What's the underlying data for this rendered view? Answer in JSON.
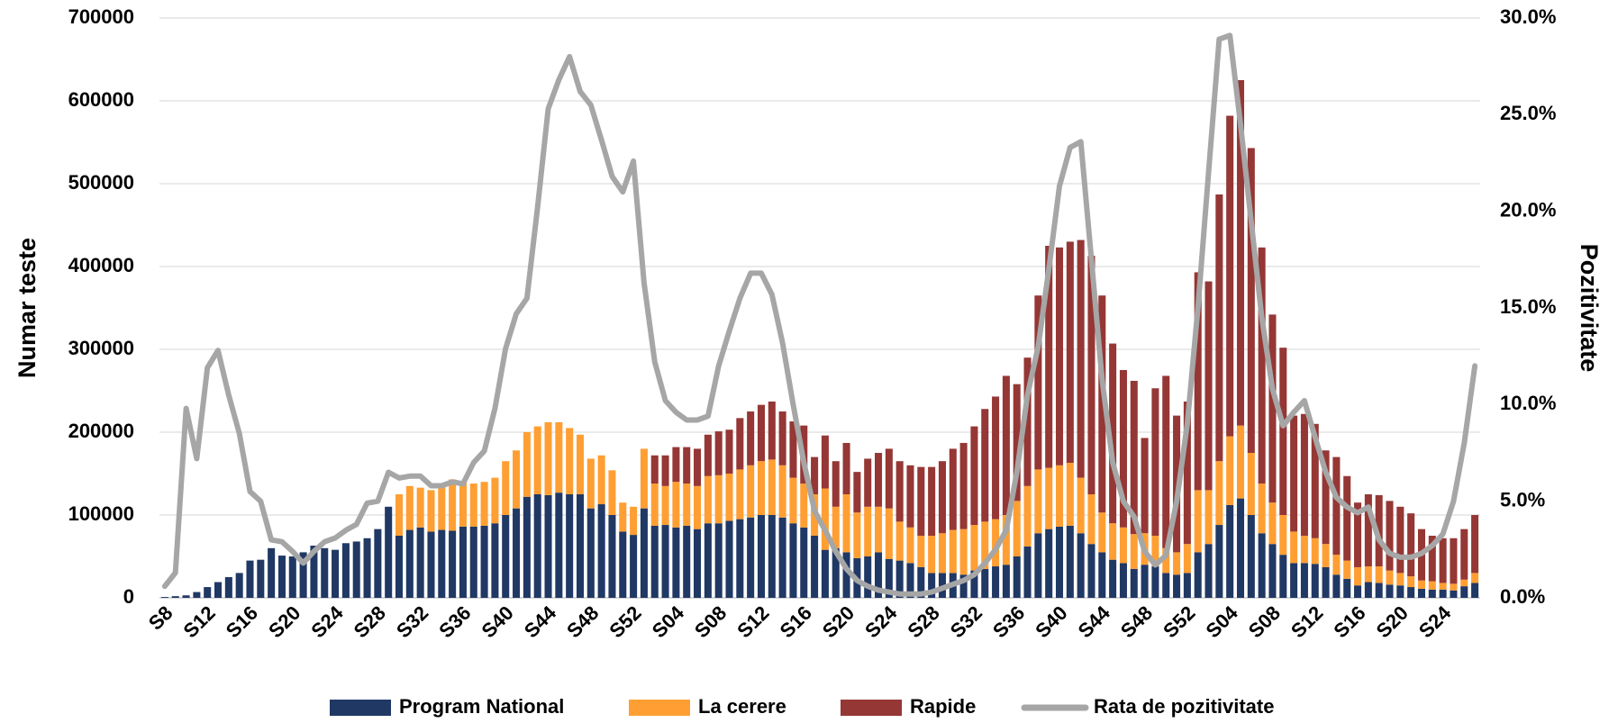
{
  "chart_data": {
    "type": "bar-line",
    "y_label": "Numar teste",
    "y2_label": "Pozitivitate",
    "categories": [
      "S8",
      null,
      null,
      null,
      "S12",
      null,
      null,
      null,
      "S16",
      null,
      null,
      null,
      "S20",
      null,
      null,
      null,
      "S24",
      null,
      null,
      null,
      "S28",
      null,
      null,
      null,
      "S32",
      null,
      null,
      null,
      "S36",
      null,
      null,
      null,
      "S40",
      null,
      null,
      null,
      "S44",
      null,
      null,
      null,
      "S48",
      null,
      null,
      null,
      "S52",
      null,
      null,
      null,
      "S04",
      null,
      null,
      null,
      "S08",
      null,
      null,
      null,
      "S12",
      null,
      null,
      null,
      "S16",
      null,
      null,
      null,
      "S20",
      null,
      null,
      null,
      "S24",
      null,
      null,
      null,
      "S28",
      null,
      null,
      null,
      "S32",
      null,
      null,
      null,
      "S36",
      null,
      null,
      null,
      "S40",
      null,
      null,
      null,
      "S44",
      null,
      null,
      null,
      "S48",
      null,
      null,
      null,
      "S52",
      null,
      null,
      null,
      "S04",
      null,
      null,
      null,
      "S08",
      null,
      null,
      null,
      "S12",
      null,
      null,
      null,
      "S16",
      null,
      null,
      null,
      "S20",
      null,
      null,
      null,
      "S24",
      null,
      null,
      null
    ],
    "series": [
      {
        "name": "Program National",
        "color": "#203864",
        "values": [
          1000,
          2000,
          3000,
          7000,
          13000,
          19000,
          25000,
          30000,
          45000,
          46000,
          60000,
          51000,
          50000,
          55000,
          63000,
          60000,
          58000,
          66000,
          68000,
          72000,
          83000,
          110000,
          75000,
          82000,
          85000,
          80000,
          82000,
          81000,
          86000,
          86000,
          87000,
          90000,
          100000,
          108000,
          122000,
          125000,
          124000,
          127000,
          125000,
          125000,
          108000,
          113000,
          100000,
          80000,
          76000,
          108000,
          87000,
          88000,
          85000,
          87000,
          83000,
          90000,
          90000,
          93000,
          95000,
          97000,
          100000,
          100000,
          97000,
          90000,
          85000,
          75000,
          58000,
          60000,
          55000,
          48000,
          50000,
          55000,
          47000,
          45000,
          42000,
          37000,
          30000,
          30000,
          30000,
          28000,
          33000,
          35000,
          38000,
          40000,
          50000,
          62000,
          78000,
          83000,
          86000,
          87000,
          78000,
          65000,
          55000,
          46000,
          42000,
          35000,
          40000,
          38000,
          30000,
          28000,
          30000,
          55000,
          65000,
          88000,
          112000,
          120000,
          100000,
          78000,
          65000,
          52000,
          42000,
          42000,
          41000,
          37000,
          28000,
          23000,
          15000,
          19000,
          18000,
          16000,
          15000,
          13000,
          11000,
          10000,
          10000,
          9000,
          14000,
          18000
        ]
      },
      {
        "name": "La cerere",
        "color": "#ff9f33",
        "values": [
          null,
          null,
          null,
          null,
          null,
          null,
          null,
          null,
          null,
          null,
          null,
          null,
          null,
          null,
          null,
          null,
          null,
          null,
          null,
          null,
          null,
          null,
          50000,
          53000,
          48000,
          50000,
          56000,
          62000,
          54000,
          52000,
          53000,
          55000,
          65000,
          70000,
          78000,
          82000,
          88000,
          85000,
          80000,
          72000,
          60000,
          59000,
          54000,
          35000,
          34000,
          72000,
          51000,
          47000,
          55000,
          51000,
          52000,
          57000,
          58000,
          57000,
          60000,
          63000,
          65000,
          67000,
          63000,
          55000,
          53000,
          50000,
          74000,
          50000,
          70000,
          55000,
          60000,
          55000,
          61000,
          47000,
          43000,
          38000,
          45000,
          48000,
          52000,
          55000,
          55000,
          57000,
          57000,
          60000,
          67000,
          73000,
          77000,
          74000,
          74000,
          76000,
          67000,
          60000,
          48000,
          44000,
          43000,
          42000,
          38000,
          37000,
          30000,
          27000,
          35000,
          75000,
          65000,
          77000,
          83000,
          88000,
          75000,
          60000,
          50000,
          48000,
          38000,
          33000,
          31000,
          28000,
          24000,
          22000,
          22000,
          19000,
          20000,
          17000,
          15000,
          13000,
          10000,
          10000,
          8000,
          8000,
          8000,
          12000
        ]
      },
      {
        "name": "Rapide",
        "color": "#953735",
        "values": [
          null,
          null,
          null,
          null,
          null,
          null,
          null,
          null,
          null,
          null,
          null,
          null,
          null,
          null,
          null,
          null,
          null,
          null,
          null,
          null,
          null,
          null,
          null,
          null,
          null,
          null,
          null,
          null,
          null,
          null,
          null,
          null,
          null,
          null,
          null,
          null,
          null,
          null,
          null,
          null,
          null,
          null,
          null,
          null,
          null,
          null,
          34000,
          37000,
          42000,
          44000,
          45000,
          50000,
          53000,
          53000,
          62000,
          65000,
          68000,
          70000,
          65000,
          68000,
          70000,
          45000,
          64000,
          55000,
          62000,
          49000,
          58000,
          65000,
          72000,
          73000,
          75000,
          83000,
          83000,
          87000,
          98000,
          104000,
          119000,
          136000,
          148000,
          168000,
          141000,
          155000,
          210000,
          268000,
          263000,
          267000,
          287000,
          288000,
          262000,
          217000,
          190000,
          185000,
          115000,
          178000,
          208000,
          165000,
          172000,
          263000,
          252000,
          322000,
          387000,
          417000,
          368000,
          285000,
          227000,
          202000,
          140000,
          147000,
          138000,
          113000,
          118000,
          102000,
          78000,
          87000,
          86000,
          84000,
          80000,
          76000,
          62000,
          55000,
          54000,
          55000,
          61000,
          70000
        ]
      },
      {
        "name": "Rata de pozitivitate",
        "color": "#a6a6a6",
        "axis": "y2",
        "values": [
          0.6,
          1.3,
          9.8,
          7.2,
          11.9,
          12.8,
          10.5,
          8.5,
          5.5,
          5.0,
          3.0,
          2.9,
          2.4,
          1.8,
          2.4,
          2.9,
          3.1,
          3.5,
          3.8,
          4.9,
          5.0,
          6.5,
          6.2,
          6.3,
          6.3,
          5.8,
          5.8,
          6.0,
          5.9,
          7.0,
          7.6,
          9.8,
          12.9,
          14.7,
          15.5,
          20.2,
          25.3,
          26.8,
          28.0,
          26.2,
          25.5,
          23.7,
          21.8,
          21.0,
          22.6,
          16.3,
          12.2,
          10.2,
          9.6,
          9.2,
          9.2,
          9.4,
          12.0,
          13.8,
          15.5,
          16.8,
          16.8,
          15.7,
          13.2,
          10.0,
          7.0,
          4.5,
          3.5,
          2.4,
          1.5,
          0.9,
          0.6,
          0.4,
          0.3,
          0.2,
          0.2,
          0.2,
          0.3,
          0.5,
          0.7,
          0.9,
          1.2,
          1.8,
          2.5,
          3.5,
          6.5,
          10.5,
          13.0,
          17.0,
          21.3,
          23.3,
          23.6,
          17.5,
          11.3,
          7.0,
          5.0,
          4.2,
          2.4,
          1.7,
          2.2,
          5.0,
          9.0,
          15.0,
          22.0,
          28.9,
          29.1,
          24.5,
          19.5,
          14.5,
          10.8,
          8.9,
          9.6,
          10.2,
          8.3,
          6.5,
          5.2,
          4.7,
          4.4,
          4.7,
          3.0,
          2.3,
          2.1,
          2.1,
          2.3,
          2.7,
          3.3,
          5.0,
          8.0,
          12.0
        ]
      }
    ],
    "ylim": [
      0,
      700000
    ],
    "yticks": [
      0,
      100000,
      200000,
      300000,
      400000,
      500000,
      600000,
      700000
    ],
    "y2lim": [
      0,
      30
    ],
    "y2ticks": [
      {
        "value": 0,
        "label": "0.0%"
      },
      {
        "value": 5,
        "label": "5.0%"
      },
      {
        "value": 10,
        "label": "10.0%"
      },
      {
        "value": 15,
        "label": "15.0%"
      },
      {
        "value": 20,
        "label": "20.0%"
      },
      {
        "value": 25,
        "label": "25.0%"
      },
      {
        "value": 30,
        "label": "30.0%"
      }
    ],
    "grid": true,
    "legend": "bottom"
  }
}
